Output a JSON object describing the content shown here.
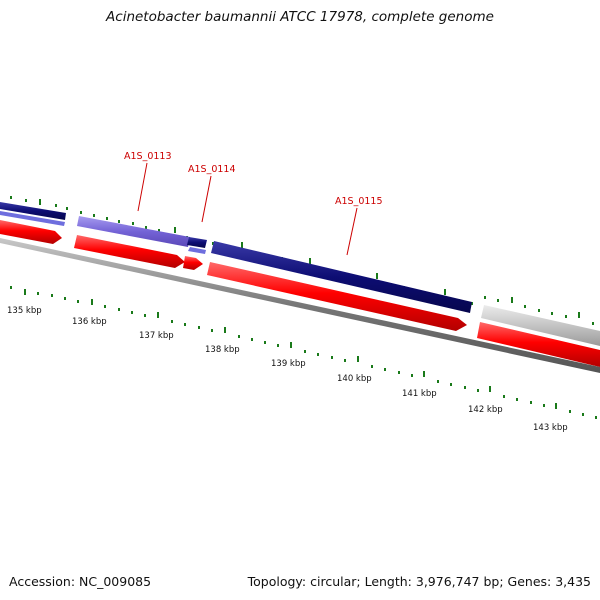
{
  "title": "Acinetobacter baumannii ATCC 17978, complete genome",
  "footer": {
    "accession": "Accession: NC_009085",
    "summary": "Topology: circular; Length: 3,976,747 bp; Genes: 3,435"
  },
  "gene_labels": [
    "A1S_0113",
    "A1S_0114",
    "A1S_0115"
  ],
  "ticks": [
    "135 kbp",
    "136 kbp",
    "137 kbp",
    "138 kbp",
    "139 kbp",
    "140 kbp",
    "141 kbp",
    "142 kbp",
    "143 kbp"
  ],
  "colors": {
    "forward_dark": "#0d0d73",
    "forward_light": "#7463d6",
    "reverse": "#ff0000",
    "other": "#c0c0c0",
    "backbone": "#777777",
    "tick": "#1a7a1a",
    "label": "#cc0000"
  }
}
